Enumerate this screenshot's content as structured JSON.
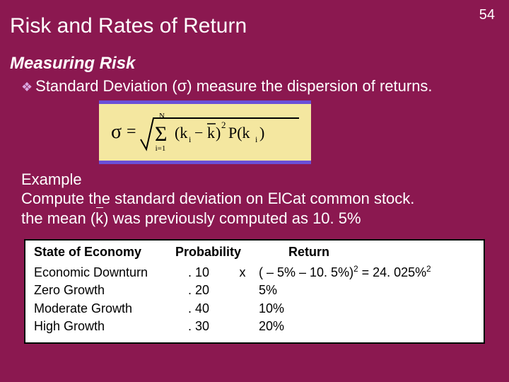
{
  "page_number": "54",
  "title": "Risk and Rates of Return",
  "subtitle": "Measuring Risk",
  "bullet_text": "Standard Deviation (σ) measure the dispersion of returns.",
  "example": {
    "heading": "Example",
    "line1": "Compute the standard deviation on ElCat common stock.",
    "line2_pre": "the mean (",
    "line2_k": "k",
    "line2_post": ") was previously computed as 10. 5%"
  },
  "table": {
    "headers": {
      "c1": "State of Economy",
      "c2": "Probability",
      "c3": "Return"
    },
    "rows": [
      {
        "state": "Economic Downturn",
        "prob": ". 10",
        "x": "x",
        "ret_html": "( – 5% – 10. 5%)<span class=\"sup\">2</span>  =   24. 025%<span class=\"sup\">2</span>"
      },
      {
        "state": "Zero Growth",
        "prob": ". 20",
        "x": "",
        "ret_html": "5%"
      },
      {
        "state": "Moderate Growth",
        "prob": ". 40",
        "x": "",
        "ret_html": "10%"
      },
      {
        "state": "High Growth",
        "prob": ". 30",
        "x": "",
        "ret_html": "20%"
      }
    ]
  },
  "colors": {
    "background": "#8b1850",
    "text_light": "#ffffff",
    "diamond": "#d9a6e0",
    "formula_bg": "#f4e7a0",
    "formula_border": "#6a4fd8",
    "table_bg": "#ffffff",
    "table_border": "#000000"
  },
  "formula": {
    "type": "equation",
    "latex": "\\sigma = \\sqrt{\\sum_{i=1}^{N}(k_i - \\bar{k})^2 P(k_i)}"
  }
}
